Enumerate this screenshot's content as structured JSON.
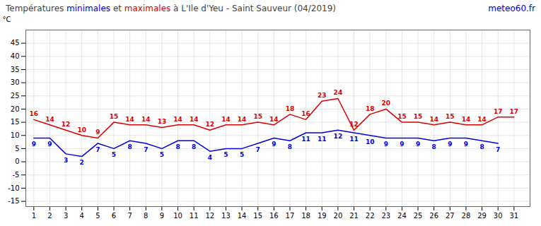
{
  "chart_data": {
    "type": "line",
    "title": "Températures minimales et maximales à L'Ile d'Yeu - Saint Sauveur (04/2019)",
    "ylabel": "°C",
    "annotations": [
      {
        "text": "meteo60.fr",
        "color": "#0000cc"
      }
    ],
    "x": [
      1,
      2,
      3,
      4,
      5,
      6,
      7,
      8,
      9,
      10,
      11,
      12,
      13,
      14,
      15,
      16,
      17,
      18,
      19,
      20,
      21,
      22,
      23,
      24,
      25,
      26,
      27,
      28,
      29,
      30,
      31
    ],
    "series": [
      {
        "name": "minimales",
        "color": "#0000dd",
        "values": [
          9,
          9,
          3,
          2,
          7,
          5,
          8,
          7,
          5,
          8,
          8,
          4,
          5,
          5,
          7,
          9,
          8,
          11,
          11,
          12,
          11,
          10,
          9,
          9,
          9,
          8,
          9,
          9,
          8,
          7,
          null
        ]
      },
      {
        "name": "maximales",
        "color": "#dd0000",
        "values": [
          16,
          14,
          12,
          10,
          9,
          15,
          14,
          14,
          13,
          14,
          14,
          12,
          14,
          14,
          15,
          14,
          18,
          16,
          23,
          24,
          12,
          18,
          20,
          15,
          15,
          14,
          15,
          14,
          14,
          17,
          17
        ]
      }
    ],
    "xlim": [
      0.5,
      32
    ],
    "xticks": [
      1,
      2,
      3,
      4,
      5,
      6,
      7,
      8,
      9,
      10,
      11,
      12,
      13,
      14,
      15,
      16,
      17,
      18,
      19,
      20,
      21,
      22,
      23,
      24,
      25,
      26,
      27,
      28,
      29,
      30,
      31
    ],
    "ylim": [
      -17,
      50
    ],
    "yticks": [
      -15,
      -10,
      -5,
      0,
      5,
      10,
      15,
      20,
      25,
      30,
      35,
      40,
      45
    ],
    "grid": true,
    "data_labels": true
  }
}
